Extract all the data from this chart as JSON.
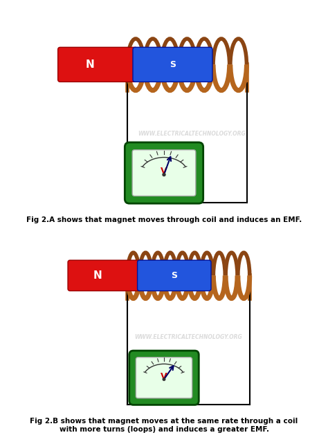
{
  "bg_color": "#ffffff",
  "fig_width": 4.74,
  "fig_height": 6.29,
  "dpi": 100,
  "watermark": "WWW.ELECTRICALTECHNOLOGY.ORG",
  "caption_a": "Fig 2.A shows that magnet moves through coil and induces an EMF.",
  "caption_b_line1": "Fig 2.B shows that magnet moves at the same rate through a coil",
  "caption_b_line2": "with more turns (loops) and induces a greater EMF.",
  "magnet_red_color": "#dd1111",
  "magnet_blue_color": "#2255dd",
  "coil_color": "#b5651d",
  "coil_highlight": "#cd853f",
  "coil_shadow": "#8b4513",
  "voltmeter_bg": "#228B22",
  "voltmeter_face": "#e8ffe8",
  "panel_bg": "#f0f0f0",
  "text_color": "#000000",
  "watermark_color": "#cccccc",
  "n_turns_a": 7,
  "n_turns_b": 10,
  "label_N": "N",
  "label_S": "S",
  "label_V": "V"
}
